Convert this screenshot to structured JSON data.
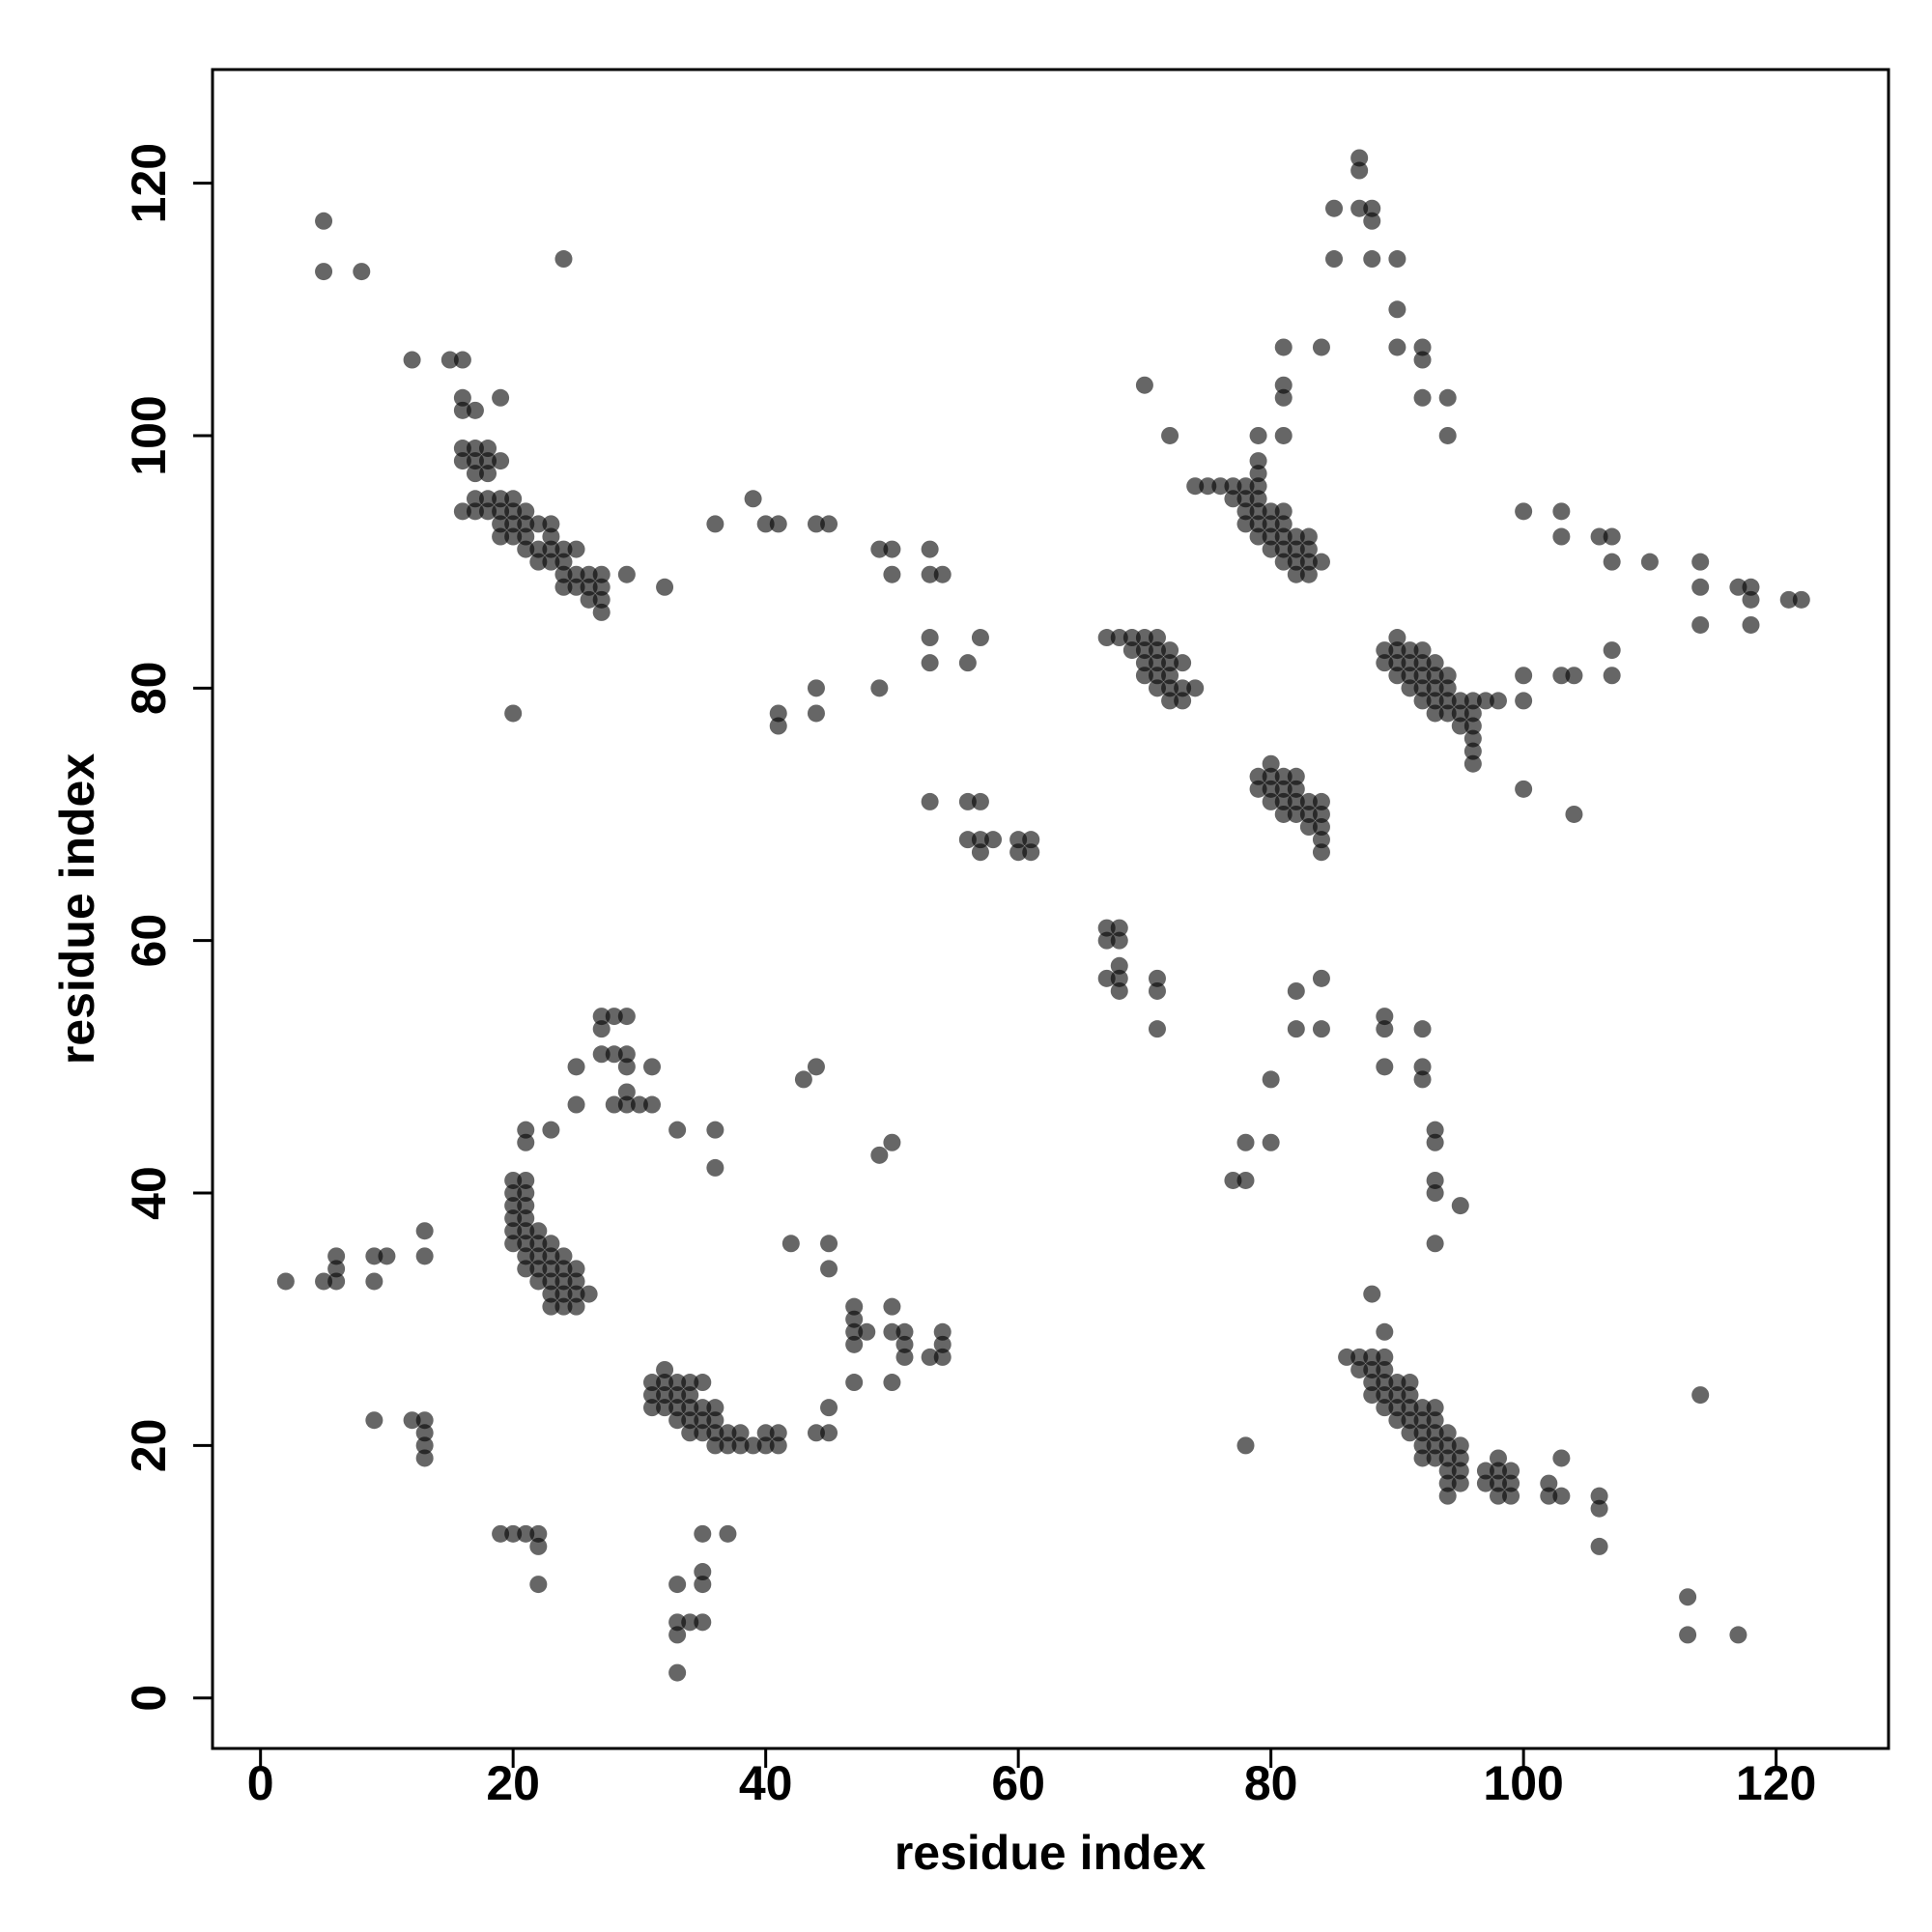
{
  "chart_data": {
    "type": "scatter",
    "x_label": "residue index",
    "y_label": "residue index",
    "color": "#000000",
    "opacity": 0.6,
    "xlim": [
      -3.8,
      128.9
    ],
    "ylim": [
      -4,
      129
    ],
    "xticks": [
      0,
      20,
      40,
      60,
      80,
      100,
      120
    ],
    "yticks": [
      0,
      20,
      40,
      60,
      80,
      100,
      120
    ],
    "x": [
      5,
      5,
      8,
      24,
      12,
      15,
      16,
      16,
      16,
      17,
      19,
      16,
      17,
      18,
      16,
      17,
      18,
      19,
      17,
      18,
      16,
      17,
      17,
      18,
      18,
      19,
      19,
      20,
      19,
      20,
      20,
      21,
      19,
      20,
      21,
      21,
      22,
      22,
      23,
      23,
      21,
      22,
      23,
      23,
      24,
      24,
      25,
      24,
      25,
      26,
      24,
      25,
      26,
      27,
      26,
      27,
      27,
      27,
      29,
      32,
      20,
      39,
      40,
      41,
      44,
      45,
      36,
      49,
      50,
      50,
      53,
      53,
      54,
      53,
      57,
      53,
      56,
      41,
      41,
      44,
      44,
      49,
      53,
      56,
      57,
      56,
      57,
      58,
      57,
      60,
      61,
      60,
      61,
      87,
      87,
      85,
      87,
      88,
      88,
      85,
      88,
      90,
      90,
      81,
      84,
      90,
      92,
      92,
      81,
      81,
      92,
      94,
      70,
      72,
      79,
      81,
      94,
      79,
      74,
      75,
      76,
      77,
      78,
      79,
      79,
      77,
      78,
      79,
      78,
      79,
      80,
      78,
      79,
      80,
      81,
      81,
      79,
      80,
      81,
      82,
      83,
      80,
      81,
      82,
      83,
      81,
      82,
      83,
      84,
      82,
      83,
      100,
      103,
      103,
      106,
      107,
      107,
      110,
      114,
      114,
      117,
      118,
      118,
      121,
      122,
      114,
      118,
      67,
      68,
      69,
      70,
      71,
      69,
      70,
      71,
      72,
      70,
      71,
      72,
      73,
      70,
      71,
      72,
      71,
      72,
      73,
      74,
      72,
      73,
      90,
      89,
      90,
      91,
      92,
      89,
      90,
      91,
      92,
      93,
      90,
      91,
      92,
      93,
      94,
      91,
      92,
      93,
      94,
      92,
      93,
      94,
      95,
      96,
      97,
      98,
      93,
      94,
      95,
      96,
      95,
      96,
      96,
      96,
      96,
      100,
      100,
      103,
      104,
      107,
      107,
      100,
      104,
      80,
      79,
      80,
      81,
      82,
      79,
      80,
      81,
      82,
      83,
      80,
      81,
      82,
      84,
      81,
      82,
      83,
      84,
      83,
      84,
      84,
      84,
      67,
      68,
      67,
      68,
      67,
      68,
      68,
      68,
      71,
      71,
      71,
      82,
      82,
      84,
      84,
      89,
      89,
      92,
      89,
      92,
      92,
      80,
      78,
      80,
      77,
      78,
      93,
      93,
      93,
      93,
      95,
      93,
      88,
      89,
      86,
      87,
      88,
      89,
      87,
      88,
      89,
      88,
      89,
      90,
      91,
      88,
      89,
      90,
      91,
      89,
      90,
      91,
      92,
      93,
      90,
      91,
      92,
      93,
      91,
      92,
      93,
      94,
      92,
      93,
      94,
      95,
      92,
      93,
      94,
      95,
      94,
      95,
      94,
      95,
      94,
      97,
      98,
      99,
      97,
      98,
      99,
      98,
      99,
      98,
      102,
      102,
      103,
      103,
      106,
      106,
      106,
      114,
      113,
      113,
      117,
      78,
      2,
      5,
      6,
      6,
      6,
      9,
      10,
      9,
      13,
      13,
      9,
      12,
      13,
      13,
      13,
      13,
      20,
      21,
      20,
      21,
      20,
      21,
      20,
      21,
      20,
      21,
      22,
      20,
      21,
      22,
      23,
      21,
      22,
      23,
      24,
      21,
      22,
      23,
      24,
      25,
      22,
      23,
      24,
      25,
      23,
      24,
      25,
      26,
      23,
      24,
      25,
      21,
      21,
      23,
      25,
      25,
      27,
      28,
      29,
      27,
      27,
      28,
      29,
      29,
      31,
      28,
      29,
      29,
      30,
      31,
      33,
      36,
      36,
      43,
      44,
      49,
      50,
      42,
      45,
      45,
      31,
      32,
      33,
      31,
      32,
      33,
      34,
      32,
      34,
      35,
      31,
      32,
      33,
      34,
      35,
      36,
      33,
      34,
      35,
      36,
      34,
      35,
      36,
      37,
      36,
      37,
      38,
      38,
      39,
      40,
      40,
      41,
      41,
      44,
      45,
      45,
      47,
      47,
      47,
      47,
      47,
      48,
      50,
      50,
      51,
      51,
      51,
      50,
      53,
      54,
      54,
      54,
      19,
      20,
      21,
      22,
      22,
      22,
      35,
      37,
      33,
      35,
      35,
      33,
      34,
      35,
      33,
      33
    ],
    "values": [
      117,
      113,
      113,
      114,
      106,
      106,
      106,
      103,
      102,
      102,
      103,
      99,
      99,
      99,
      98,
      98,
      98,
      98,
      97,
      97,
      94,
      94,
      95,
      95,
      94,
      95,
      94,
      95,
      93,
      93,
      94,
      94,
      92,
      92,
      92,
      93,
      93,
      91,
      93,
      92,
      91,
      90,
      90,
      91,
      91,
      90,
      91,
      89,
      89,
      89,
      88,
      88,
      88,
      89,
      87,
      87,
      88,
      86,
      89,
      88,
      78,
      95,
      93,
      93,
      93,
      93,
      93,
      91,
      91,
      89,
      91,
      89,
      89,
      84,
      84,
      82,
      82,
      78,
      77,
      80,
      78,
      80,
      71,
      71,
      71,
      68,
      68,
      68,
      67,
      68,
      68,
      67,
      67,
      122,
      121,
      118,
      118,
      118,
      117,
      114,
      114,
      114,
      110,
      107,
      107,
      107,
      107,
      106,
      104,
      103,
      103,
      103,
      104,
      100,
      100,
      100,
      100,
      98,
      96,
      96,
      96,
      96,
      96,
      96,
      97,
      95,
      95,
      95,
      94,
      94,
      94,
      93,
      93,
      93,
      93,
      94,
      92,
      92,
      92,
      92,
      92,
      91,
      91,
      91,
      91,
      90,
      90,
      90,
      90,
      89,
      89,
      94,
      94,
      92,
      92,
      92,
      90,
      90,
      90,
      88,
      88,
      88,
      87,
      87,
      87,
      85,
      85,
      84,
      84,
      84,
      84,
      84,
      83,
      83,
      83,
      83,
      82,
      82,
      82,
      82,
      81,
      81,
      81,
      80,
      80,
      80,
      80,
      79,
      79,
      84,
      83,
      83,
      83,
      83,
      82,
      82,
      82,
      82,
      82,
      81,
      81,
      81,
      81,
      81,
      80,
      80,
      80,
      80,
      79,
      79,
      79,
      79,
      79,
      79,
      79,
      78,
      78,
      78,
      78,
      77,
      77,
      76,
      75,
      74,
      81,
      79,
      81,
      81,
      83,
      81,
      72,
      70,
      74,
      73,
      73,
      73,
      73,
      72,
      72,
      72,
      72,
      71,
      71,
      71,
      71,
      71,
      70,
      70,
      70,
      70,
      69,
      69,
      68,
      67,
      61,
      61,
      60,
      60,
      57,
      58,
      56,
      57,
      57,
      56,
      53,
      56,
      53,
      57,
      53,
      54,
      53,
      53,
      50,
      50,
      49,
      49,
      44,
      44,
      41,
      41,
      45,
      44,
      41,
      40,
      39,
      36,
      32,
      29,
      27,
      27,
      27,
      27,
      26,
      26,
      26,
      25,
      25,
      25,
      25,
      24,
      24,
      24,
      24,
      23,
      23,
      23,
      23,
      23,
      22,
      22,
      22,
      22,
      21,
      21,
      21,
      21,
      20,
      20,
      20,
      20,
      19,
      19,
      19,
      19,
      18,
      18,
      17,
      17,
      16,
      18,
      18,
      18,
      17,
      17,
      17,
      16,
      16,
      19,
      17,
      16,
      16,
      19,
      16,
      15,
      12,
      24,
      8,
      5,
      5,
      20,
      33,
      33,
      33,
      34,
      35,
      35,
      35,
      33,
      37,
      35,
      22,
      22,
      22,
      21,
      20,
      19,
      41,
      41,
      40,
      40,
      39,
      39,
      38,
      38,
      37,
      37,
      37,
      36,
      36,
      36,
      36,
      35,
      35,
      35,
      35,
      34,
      34,
      34,
      34,
      34,
      33,
      33,
      33,
      33,
      32,
      32,
      32,
      32,
      31,
      31,
      31,
      44,
      45,
      45,
      47,
      50,
      54,
      54,
      54,
      53,
      51,
      51,
      51,
      50,
      50,
      47,
      48,
      47,
      47,
      47,
      45,
      45,
      42,
      49,
      50,
      43,
      44,
      36,
      36,
      34,
      25,
      25,
      25,
      24,
      24,
      24,
      24,
      26,
      25,
      25,
      23,
      23,
      23,
      23,
      23,
      23,
      22,
      22,
      22,
      22,
      21,
      21,
      21,
      21,
      20,
      20,
      20,
      21,
      20,
      20,
      21,
      21,
      20,
      21,
      21,
      23,
      25,
      28,
      29,
      30,
      31,
      29,
      31,
      29,
      29,
      28,
      27,
      25,
      27,
      27,
      28,
      29,
      13,
      13,
      13,
      13,
      12,
      9,
      13,
      13,
      9,
      10,
      9,
      6,
      6,
      6,
      5,
      2
    ]
  }
}
